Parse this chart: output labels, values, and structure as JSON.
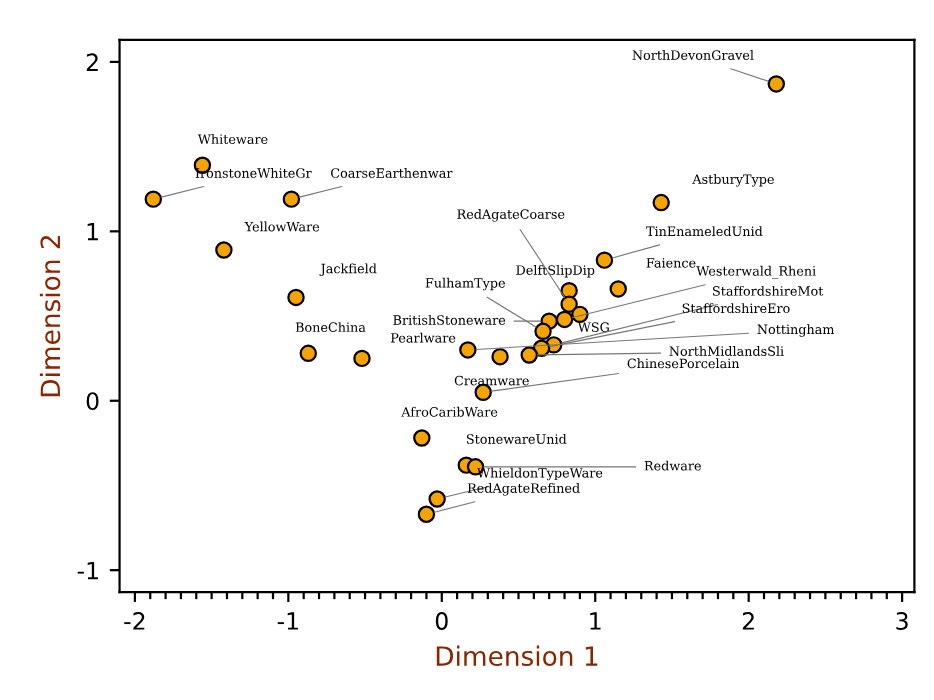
{
  "chart_data": {
    "type": "scatter",
    "xlabel": "Dimension 1",
    "ylabel": "Dimension 2",
    "xlim": [
      -2.1,
      3.08
    ],
    "ylim": [
      -1.13,
      2.13
    ],
    "xticks": [
      -2,
      -1,
      0,
      1,
      2,
      3,
      {
        "value": -1.9,
        "label": null
      },
      {
        "value": -1.8,
        "label": null
      },
      {
        "value": -1.7,
        "label": null
      },
      {
        "value": -1.6,
        "label": null
      },
      {
        "value": -1.5,
        "label": null
      },
      {
        "value": -1.4,
        "label": null
      },
      {
        "value": -1.3,
        "label": null
      },
      {
        "value": -1.2,
        "label": null
      },
      {
        "value": -1.1,
        "label": null
      },
      {
        "value": -0.9,
        "label": null
      },
      {
        "value": -0.8,
        "label": null
      },
      {
        "value": -0.7,
        "label": null
      },
      {
        "value": -0.6,
        "label": null
      },
      {
        "value": -0.5,
        "label": null
      },
      {
        "value": -0.4,
        "label": null
      },
      {
        "value": -0.3,
        "label": null
      },
      {
        "value": -0.2,
        "label": null
      },
      {
        "value": -0.1,
        "label": null
      },
      {
        "value": 0.1,
        "label": null
      },
      {
        "value": 0.2,
        "label": null
      },
      {
        "value": 0.3,
        "label": null
      },
      {
        "value": 0.4,
        "label": null
      },
      {
        "value": 0.5,
        "label": null
      },
      {
        "value": 0.6,
        "label": null
      },
      {
        "value": 0.7,
        "label": null
      },
      {
        "value": 0.8,
        "label": null
      },
      {
        "value": 0.9,
        "label": null
      },
      {
        "value": 1.1,
        "label": null
      },
      {
        "value": 1.2,
        "label": null
      },
      {
        "value": 1.3,
        "label": null
      },
      {
        "value": 1.4,
        "label": null
      },
      {
        "value": 1.5,
        "label": null
      },
      {
        "value": 1.6,
        "label": null
      },
      {
        "value": 1.7,
        "label": null
      },
      {
        "value": 1.8,
        "label": null
      },
      {
        "value": 1.9,
        "label": null
      },
      {
        "value": 2.1,
        "label": null
      },
      {
        "value": 2.2,
        "label": null
      },
      {
        "value": 2.3,
        "label": null
      },
      {
        "value": 2.4,
        "label": null
      },
      {
        "value": 2.5,
        "label": null
      },
      {
        "value": 2.6,
        "label": null
      },
      {
        "value": 2.7,
        "label": null
      },
      {
        "value": 2.8,
        "label": null
      },
      {
        "value": 2.9,
        "label": null
      }
    ],
    "yticks": [
      -1,
      0,
      1,
      2
    ],
    "marker": "circle",
    "grid": false,
    "series": [
      {
        "color": "#f5a300",
        "x": [
          2.18,
          -1.56,
          -1.88,
          -0.98,
          -1.42,
          -0.95,
          -0.87,
          -0.52,
          1.43,
          1.06,
          1.15,
          0.83,
          0.83,
          0.9,
          0.8,
          0.7,
          0.66,
          0.73,
          0.65,
          0.57,
          0.38,
          0.17,
          0.27,
          -0.13,
          0.16,
          0.22,
          -0.03,
          -0.1
        ],
        "values": [
          1.87,
          1.39,
          1.19,
          1.19,
          0.89,
          0.61,
          0.28,
          0.25,
          1.17,
          0.83,
          0.66,
          0.65,
          0.57,
          0.51,
          0.48,
          0.47,
          0.41,
          0.33,
          0.31,
          0.27,
          0.26,
          0.3,
          0.05,
          -0.22,
          -0.38,
          -0.39,
          -0.58,
          -0.67
        ]
      }
    ],
    "annotations": [
      {
        "text": "NorthDevonGravel",
        "x": 2.18,
        "y": 1.87
      },
      {
        "text": "Whiteware",
        "x": -1.56,
        "y": 1.39
      },
      {
        "text": "IronstoneWhiteGr",
        "x": -1.88,
        "y": 1.19
      },
      {
        "text": "CoarseEarthenwar",
        "x": -0.98,
        "y": 1.19
      },
      {
        "text": "YellowWare",
        "x": -1.42,
        "y": 0.89
      },
      {
        "text": "Jackfield",
        "x": -0.95,
        "y": 0.61
      },
      {
        "text": "BoneChina",
        "x": -0.87,
        "y": 0.28
      },
      {
        "text": "Pearlware",
        "x": -0.52,
        "y": 0.25
      },
      {
        "text": "AstburyType",
        "x": 1.43,
        "y": 1.17
      },
      {
        "text": "TinEnameledUnid",
        "x": 1.06,
        "y": 0.83
      },
      {
        "text": "Faience",
        "x": 1.15,
        "y": 0.66
      },
      {
        "text": "DelftSlipDip",
        "x": 0.83,
        "y": 0.65
      },
      {
        "text": "RedAgateCoarse",
        "x": 0.83,
        "y": 0.57
      },
      {
        "text": "WSG",
        "x": 0.9,
        "y": 0.51
      },
      {
        "text": "Westerwald_Rheni",
        "x": 0.8,
        "y": 0.48
      },
      {
        "text": "BritishStoneware",
        "x": 0.7,
        "y": 0.47
      },
      {
        "text": "FulhamType",
        "x": 0.66,
        "y": 0.41
      },
      {
        "text": "StaffordshireMot",
        "x": 0.73,
        "y": 0.33
      },
      {
        "text": "StaffordshireEro",
        "x": 0.65,
        "y": 0.31
      },
      {
        "text": "NorthMidlandsSli",
        "x": 0.57,
        "y": 0.27
      },
      {
        "text": "Creamware",
        "x": 0.38,
        "y": 0.26
      },
      {
        "text": "Nottingham",
        "x": 0.17,
        "y": 0.3
      },
      {
        "text": "ChinesePorcelain",
        "x": 0.27,
        "y": 0.05
      },
      {
        "text": "AfroCaribWare",
        "x": -0.13,
        "y": -0.22
      },
      {
        "text": "StonewareUnid",
        "x": 0.16,
        "y": -0.38
      },
      {
        "text": "Redware",
        "x": 0.22,
        "y": -0.39
      },
      {
        "text": "WhieldonTypeWare",
        "x": -0.03,
        "y": -0.58
      },
      {
        "text": "RedAgateRefined",
        "x": -0.1,
        "y": -0.67
      }
    ]
  }
}
